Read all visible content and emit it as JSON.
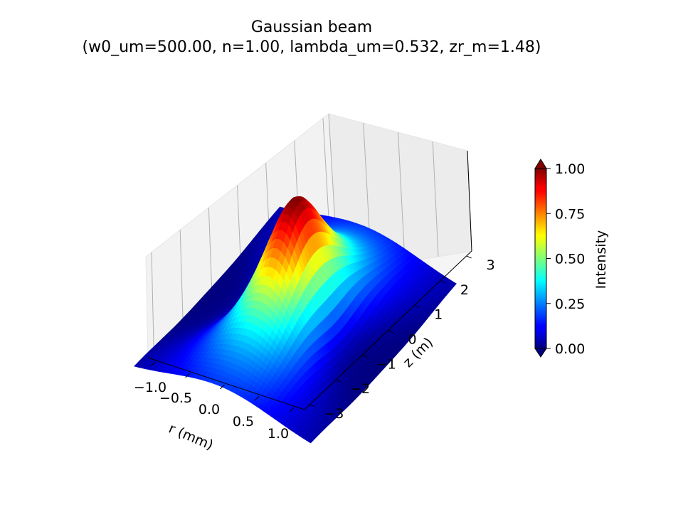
{
  "chart_data": {
    "type": "surface3d",
    "title_line1": "Gaussian beam",
    "title_line2": "(w0_um=500.00, n=1.00, lambda_um=0.532, zr_m=1.48)",
    "xlabel": "r (mm)",
    "ylabel": "z (m)",
    "params": {
      "w0_um": 500.0,
      "n": 1.0,
      "lambda_um": 0.532,
      "zr_m": 1.48
    },
    "r_range_mm": [
      -1.0,
      1.0
    ],
    "z_range_m": [
      -3.2,
      3.2
    ],
    "intensity_range": [
      0.0,
      1.0
    ],
    "colormap": "jet",
    "r_ticks": [
      "−1.0",
      "−0.5",
      "0.0",
      "0.5",
      "1.0"
    ],
    "r_tick_values": [
      -1.0,
      -0.5,
      0.0,
      0.5,
      1.0
    ],
    "z_ticks": [
      "−3",
      "−2",
      "−1",
      "0",
      "1",
      "2",
      "3"
    ],
    "z_tick_values": [
      -3,
      -2,
      -1,
      0,
      1,
      2,
      3
    ],
    "colorbar": {
      "label": "Intensity",
      "ticks": [
        "0.00",
        "0.25",
        "0.50",
        "0.75",
        "1.00"
      ],
      "tick_values": [
        0.0,
        0.25,
        0.5,
        0.75,
        1.0
      ]
    }
  }
}
